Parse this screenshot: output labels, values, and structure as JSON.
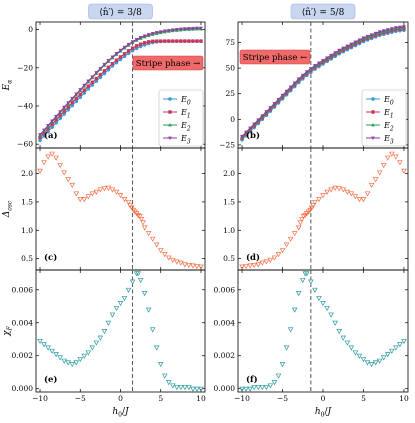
{
  "chart_data": [
    {
      "type": "line",
      "column_title": "⟨n̂′⟩ = 3/8",
      "panel_label": "(a)",
      "ylabel": "E_α",
      "xlim": [
        -10.5,
        10.5
      ],
      "ylim": [
        -62,
        4
      ],
      "yticks": [
        0,
        -20,
        -40,
        -60
      ],
      "annotation": "Stripe phase →",
      "x": [
        -10,
        -9.5,
        -9,
        -8.5,
        -8,
        -7.5,
        -7,
        -6.5,
        -6,
        -5.5,
        -5,
        -4.5,
        -4,
        -3.5,
        -3,
        -2.5,
        -2,
        -1.5,
        -1,
        -0.5,
        0,
        0.5,
        1,
        1.5,
        2,
        2.5,
        3,
        3.5,
        4,
        4.5,
        5,
        5.5,
        6,
        6.5,
        7,
        7.5,
        8,
        8.5,
        9,
        9.5,
        10
      ],
      "series": [
        {
          "name": "E_0",
          "color": "#3b9ad6",
          "marker": "circle",
          "values": [
            -58.0,
            -55.7,
            -53.4,
            -51.1,
            -48.8,
            -46.5,
            -44.2,
            -42.0,
            -39.8,
            -37.6,
            -35.4,
            -33.2,
            -31.0,
            -29.0,
            -27.0,
            -25.0,
            -23.0,
            -21.0,
            -19.0,
            -17.3,
            -15.6,
            -14.0,
            -12.4,
            -11.0,
            -9.8,
            -8.8,
            -8.0,
            -7.3,
            -6.8,
            -6.4,
            -6.2,
            -6.1,
            -6.0,
            -6.0,
            -6.0,
            -6.0,
            -6.0,
            -6.0,
            -6.0,
            -6.0,
            -6.0
          ]
        },
        {
          "name": "E_1",
          "color": "#c8365c",
          "marker": "square",
          "values": [
            -56.5,
            -54.2,
            -51.9,
            -49.6,
            -47.3,
            -45.0,
            -42.7,
            -40.5,
            -38.3,
            -36.1,
            -33.9,
            -31.7,
            -29.6,
            -27.6,
            -25.6,
            -23.6,
            -21.6,
            -19.7,
            -17.8,
            -16.0,
            -14.3,
            -12.7,
            -11.1,
            -9.7,
            -8.5,
            -7.6,
            -6.9,
            -6.4,
            -6.1,
            -6.0,
            -6.0,
            -6.0,
            -6.0,
            -6.0,
            -6.0,
            -6.0,
            -6.0,
            -6.0,
            -6.0,
            -6.0,
            -6.0
          ]
        },
        {
          "name": "E_2",
          "color": "#2e9e5b",
          "marker": "triangle-up",
          "values": [
            -55.5,
            -53.1,
            -50.7,
            -48.3,
            -45.9,
            -43.5,
            -41.1,
            -38.8,
            -36.5,
            -34.2,
            -31.9,
            -29.6,
            -27.4,
            -25.2,
            -23.0,
            -20.8,
            -18.7,
            -16.7,
            -14.8,
            -13.0,
            -11.3,
            -9.7,
            -8.2,
            -6.8,
            -5.6,
            -4.6,
            -3.8,
            -3.1,
            -2.5,
            -2.0,
            -1.6,
            -1.2,
            -0.9,
            -0.6,
            -0.4,
            -0.2,
            0.0,
            0.1,
            0.2,
            0.3,
            0.3
          ]
        },
        {
          "name": "E_3",
          "color": "#8e3fa0",
          "marker": "triangle-down",
          "values": [
            -55.0,
            -52.6,
            -50.2,
            -47.8,
            -45.4,
            -43.0,
            -40.6,
            -38.3,
            -36.0,
            -33.7,
            -31.4,
            -29.1,
            -26.9,
            -24.7,
            -22.5,
            -20.3,
            -18.2,
            -16.2,
            -14.3,
            -12.5,
            -10.8,
            -9.2,
            -7.7,
            -6.3,
            -5.1,
            -4.1,
            -3.3,
            -2.6,
            -2.0,
            -1.5,
            -1.1,
            -0.7,
            -0.4,
            -0.1,
            0.1,
            0.3,
            0.5,
            0.6,
            0.7,
            0.8,
            0.8
          ]
        }
      ]
    },
    {
      "type": "line",
      "column_title": "⟨n̂′⟩ = 5/8",
      "panel_label": "(b)",
      "xlim": [
        -10.5,
        10.5
      ],
      "ylim": [
        -28,
        95
      ],
      "yticks": [
        -25,
        0,
        25,
        50,
        75
      ],
      "annotation": "Stripe phase ←",
      "x": [
        -10,
        -9.5,
        -9,
        -8.5,
        -8,
        -7.5,
        -7,
        -6.5,
        -6,
        -5.5,
        -5,
        -4.5,
        -4,
        -3.5,
        -3,
        -2.5,
        -2,
        -1.5,
        -1,
        -0.5,
        0,
        0.5,
        1,
        1.5,
        2,
        2.5,
        3,
        3.5,
        4,
        4.5,
        5,
        5.5,
        6,
        6.5,
        7,
        7.5,
        8,
        8.5,
        9,
        9.5,
        10
      ],
      "series": [
        {
          "name": "E_0",
          "color": "#3b9ad6",
          "marker": "circle",
          "values": [
            -20.0,
            -16.0,
            -12.0,
            -8.0,
            -4.0,
            0.0,
            4.0,
            8.0,
            12.0,
            16.0,
            20.0,
            24.0,
            28.0,
            32.0,
            36.0,
            39.5,
            43.0,
            46.0,
            49.0,
            51.5,
            54.0,
            56.5,
            59.0,
            61.5,
            64.0,
            66.0,
            68.0,
            70.0,
            72.0,
            74.0,
            76.0,
            77.5,
            79.0,
            80.5,
            82.0,
            83.0,
            84.0,
            85.0,
            86.0,
            86.5,
            87.0
          ]
        },
        {
          "name": "E_1",
          "color": "#c8365c",
          "marker": "square",
          "values": [
            -18.5,
            -14.5,
            -10.5,
            -6.5,
            -2.5,
            1.5,
            5.5,
            9.5,
            13.5,
            17.5,
            21.5,
            25.5,
            29.5,
            33.5,
            37.5,
            41.0,
            44.5,
            47.5,
            50.5,
            53.0,
            55.5,
            58.0,
            60.5,
            63.0,
            65.5,
            67.5,
            69.5,
            71.5,
            73.5,
            75.5,
            77.5,
            79.0,
            80.5,
            82.0,
            83.5,
            84.5,
            85.5,
            86.5,
            87.5,
            88.0,
            88.5
          ]
        },
        {
          "name": "E_2",
          "color": "#2e9e5b",
          "marker": "triangle-up",
          "values": [
            -17.5,
            -13.5,
            -9.5,
            -5.5,
            -1.5,
            2.5,
            6.5,
            10.5,
            14.5,
            18.5,
            22.5,
            26.5,
            30.5,
            34.5,
            38.5,
            42.0,
            45.5,
            48.5,
            51.5,
            54.0,
            56.5,
            59.0,
            61.5,
            64.0,
            66.5,
            68.5,
            70.5,
            72.5,
            74.5,
            76.5,
            78.5,
            80.0,
            81.5,
            83.0,
            84.5,
            85.5,
            86.5,
            87.5,
            88.5,
            89.0,
            89.5
          ]
        },
        {
          "name": "E_3",
          "color": "#8e3fa0",
          "marker": "triangle-down",
          "values": [
            -16.5,
            -12.5,
            -8.5,
            -4.5,
            -0.5,
            3.5,
            7.5,
            11.5,
            15.5,
            19.5,
            23.5,
            27.5,
            31.5,
            35.5,
            39.5,
            43.0,
            46.5,
            49.5,
            52.5,
            55.0,
            57.5,
            60.0,
            62.5,
            65.0,
            67.5,
            69.5,
            71.5,
            73.5,
            75.5,
            77.5,
            79.5,
            81.0,
            82.5,
            84.0,
            85.5,
            86.5,
            87.5,
            88.5,
            89.5,
            90.0,
            90.5
          ]
        }
      ]
    },
    {
      "type": "scatter",
      "panel_label": "(c)",
      "ylabel": "Δ_osc",
      "xlim": [
        -10.5,
        10.5
      ],
      "ylim": [
        0.3,
        2.45
      ],
      "yticks": [
        0.5,
        1.0,
        1.5,
        2.0
      ],
      "color": "#f46d43",
      "x": [
        -10,
        -9.5,
        -9,
        -8.5,
        -8,
        -7.5,
        -7,
        -6.5,
        -6,
        -5.5,
        -5,
        -4.5,
        -4,
        -3.5,
        -3,
        -2.5,
        -2,
        -1.5,
        -1,
        -0.5,
        0,
        0.5,
        1,
        1.2,
        1.4,
        1.6,
        1.8,
        2.0,
        2.2,
        2.4,
        2.6,
        2.8,
        3,
        3.5,
        4,
        4.5,
        5,
        5.5,
        6,
        6.5,
        7,
        7.5,
        8,
        8.5,
        9,
        9.5,
        10
      ],
      "values": [
        2.05,
        2.2,
        2.3,
        2.35,
        2.28,
        2.15,
        2.02,
        1.9,
        1.8,
        1.65,
        1.55,
        1.55,
        1.6,
        1.65,
        1.68,
        1.72,
        1.74,
        1.75,
        1.72,
        1.68,
        1.62,
        1.55,
        1.5,
        1.44,
        1.4,
        1.36,
        1.33,
        1.3,
        1.27,
        1.25,
        1.2,
        1.14,
        1.05,
        0.95,
        0.85,
        0.75,
        0.65,
        0.58,
        0.52,
        0.48,
        0.45,
        0.43,
        0.4,
        0.39,
        0.38,
        0.37,
        0.36
      ]
    },
    {
      "type": "scatter",
      "panel_label": "(d)",
      "xlim": [
        -10.5,
        10.5
      ],
      "ylim": [
        0.3,
        2.45
      ],
      "yticks": [
        0.5,
        1.0,
        1.5,
        2.0
      ],
      "color": "#f46d43",
      "x": [
        -10,
        -9.5,
        -9,
        -8.5,
        -8,
        -7.5,
        -7,
        -6.5,
        -6,
        -5.5,
        -5,
        -4.5,
        -4,
        -3.5,
        -3,
        -2.8,
        -2.6,
        -2.4,
        -2.2,
        -2.0,
        -1.8,
        -1.6,
        -1.4,
        -1.2,
        -1,
        -0.5,
        0,
        0.5,
        1,
        1.5,
        2,
        2.5,
        3,
        3.5,
        4,
        4.5,
        5,
        5.5,
        6,
        6.5,
        7,
        7.5,
        8,
        8.5,
        9,
        9.5,
        10
      ],
      "values": [
        0.36,
        0.37,
        0.38,
        0.39,
        0.4,
        0.43,
        0.45,
        0.48,
        0.52,
        0.58,
        0.65,
        0.75,
        0.85,
        0.95,
        1.05,
        1.14,
        1.2,
        1.25,
        1.27,
        1.3,
        1.33,
        1.36,
        1.4,
        1.44,
        1.5,
        1.55,
        1.62,
        1.68,
        1.72,
        1.75,
        1.74,
        1.72,
        1.68,
        1.65,
        1.6,
        1.55,
        1.55,
        1.65,
        1.8,
        1.9,
        2.02,
        2.15,
        2.28,
        2.35,
        2.3,
        2.2,
        2.05
      ]
    },
    {
      "type": "scatter",
      "panel_label": "(e)",
      "ylabel": "χ_F",
      "xlabel": "h_0/J",
      "xlim": [
        -10.5,
        10.5
      ],
      "ylim": [
        -0.0002,
        0.0072
      ],
      "yticks": [
        0.0,
        0.002,
        0.004,
        0.006
      ],
      "xticks": [
        -10,
        -5,
        0,
        5,
        10
      ],
      "color": "#2a9a9e",
      "x": [
        -10,
        -9.5,
        -9,
        -8.5,
        -8,
        -7.5,
        -7,
        -6.5,
        -6,
        -5.5,
        -5,
        -4.5,
        -4,
        -3.5,
        -3,
        -2.5,
        -2,
        -1.5,
        -1,
        -0.5,
        0,
        0.5,
        1,
        1.5,
        2,
        2.2,
        2.5,
        3,
        3.5,
        4,
        4.5,
        5,
        5.5,
        6,
        6.5,
        7,
        7.5,
        8,
        8.5,
        9,
        9.5,
        10
      ],
      "values": [
        0.0029,
        0.0027,
        0.0025,
        0.0023,
        0.0021,
        0.0019,
        0.0017,
        0.0016,
        0.0015,
        0.0016,
        0.0018,
        0.002,
        0.0022,
        0.0025,
        0.0028,
        0.0031,
        0.0035,
        0.004,
        0.0045,
        0.0049,
        0.0052,
        0.0055,
        0.006,
        0.0065,
        0.007,
        0.007,
        0.0066,
        0.0058,
        0.0048,
        0.0036,
        0.0025,
        0.0015,
        0.0008,
        0.0004,
        0.0002,
        0.0001,
        0.0001,
        0.0001,
        0.0001,
        0.0,
        0.0,
        0.0
      ]
    },
    {
      "type": "scatter",
      "panel_label": "(f)",
      "xlabel": "h_0/J",
      "xlim": [
        -10.5,
        10.5
      ],
      "ylim": [
        -0.0002,
        0.0072
      ],
      "yticks": [
        0.0,
        0.002,
        0.004,
        0.006
      ],
      "xticks": [
        -10,
        -5,
        0,
        5,
        10
      ],
      "color": "#2a9a9e",
      "x": [
        -10,
        -9.5,
        -9,
        -8.5,
        -8,
        -7.5,
        -7,
        -6.5,
        -6,
        -5.5,
        -5,
        -4.5,
        -4,
        -3.5,
        -3,
        -2.5,
        -2.2,
        -2,
        -1.5,
        -1,
        -0.5,
        0,
        0.5,
        1,
        1.5,
        2,
        2.5,
        3,
        3.5,
        4,
        4.5,
        5,
        5.5,
        6,
        6.5,
        7,
        7.5,
        8,
        8.5,
        9,
        9.5,
        10
      ],
      "values": [
        0.0,
        0.0,
        0.0,
        0.0001,
        0.0001,
        0.0001,
        0.0001,
        0.0002,
        0.0004,
        0.0008,
        0.0015,
        0.0025,
        0.0036,
        0.0048,
        0.0058,
        0.0066,
        0.007,
        0.007,
        0.0065,
        0.006,
        0.0055,
        0.0052,
        0.0049,
        0.0045,
        0.004,
        0.0035,
        0.0031,
        0.0028,
        0.0025,
        0.0022,
        0.002,
        0.0018,
        0.0016,
        0.0015,
        0.0016,
        0.0017,
        0.0019,
        0.0021,
        0.0023,
        0.0025,
        0.0027,
        0.0029
      ]
    }
  ],
  "dashed_line_x": [
    1.5,
    -1.5
  ],
  "legend": [
    "E_0",
    "E_1",
    "E_2",
    "E_3"
  ]
}
